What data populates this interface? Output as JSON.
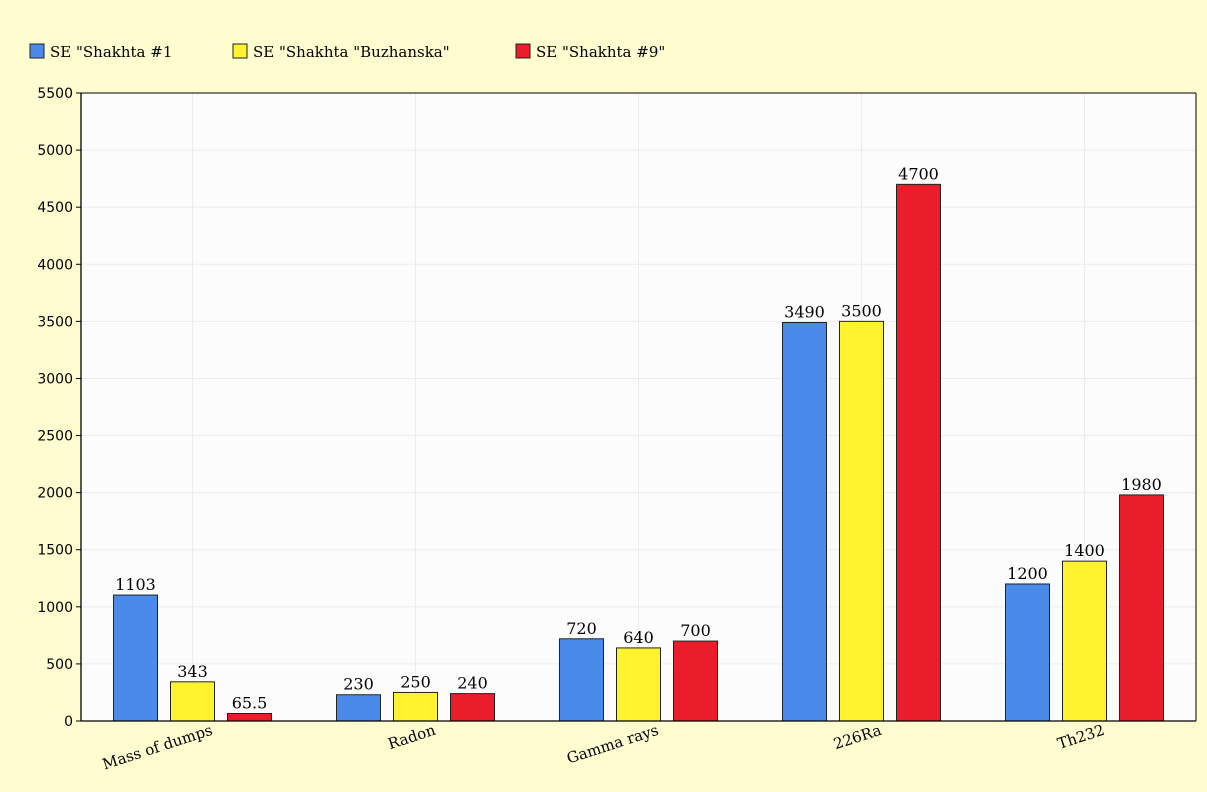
{
  "chart_data": {
    "type": "bar",
    "categories": [
      "Mass of dumps",
      "Radon",
      "Gamma rays",
      "226Ra",
      "Th232"
    ],
    "series": [
      {
        "name": "SE \"Shakhta #1",
        "color": "#4a8ae8",
        "values": [
          1103,
          230,
          720,
          3490,
          1200
        ],
        "labels": [
          "1103",
          "230",
          "720",
          "3490",
          "1200"
        ]
      },
      {
        "name": "SE \"Shakhta \"Buzhanska\"",
        "color": "#fff22f",
        "values": [
          343,
          250,
          640,
          3500,
          1400
        ],
        "labels": [
          "343",
          "250",
          "640",
          "3500",
          "1400"
        ]
      },
      {
        "name": "SE \"Shakhta #9\"",
        "color": "#ea1d2a",
        "values": [
          65.5,
          240,
          700,
          4700,
          1980
        ],
        "labels": [
          "65.5",
          "240",
          "700",
          "4700",
          "1980"
        ]
      }
    ],
    "ylim": [
      0,
      5500
    ],
    "yticks": [
      0,
      500,
      1000,
      1500,
      2000,
      2500,
      3000,
      3500,
      4000,
      4500,
      5000,
      5500
    ],
    "title": "",
    "xlabel": "",
    "ylabel": "",
    "legend": "top-left",
    "grid": true,
    "background": "#fffdd0"
  }
}
